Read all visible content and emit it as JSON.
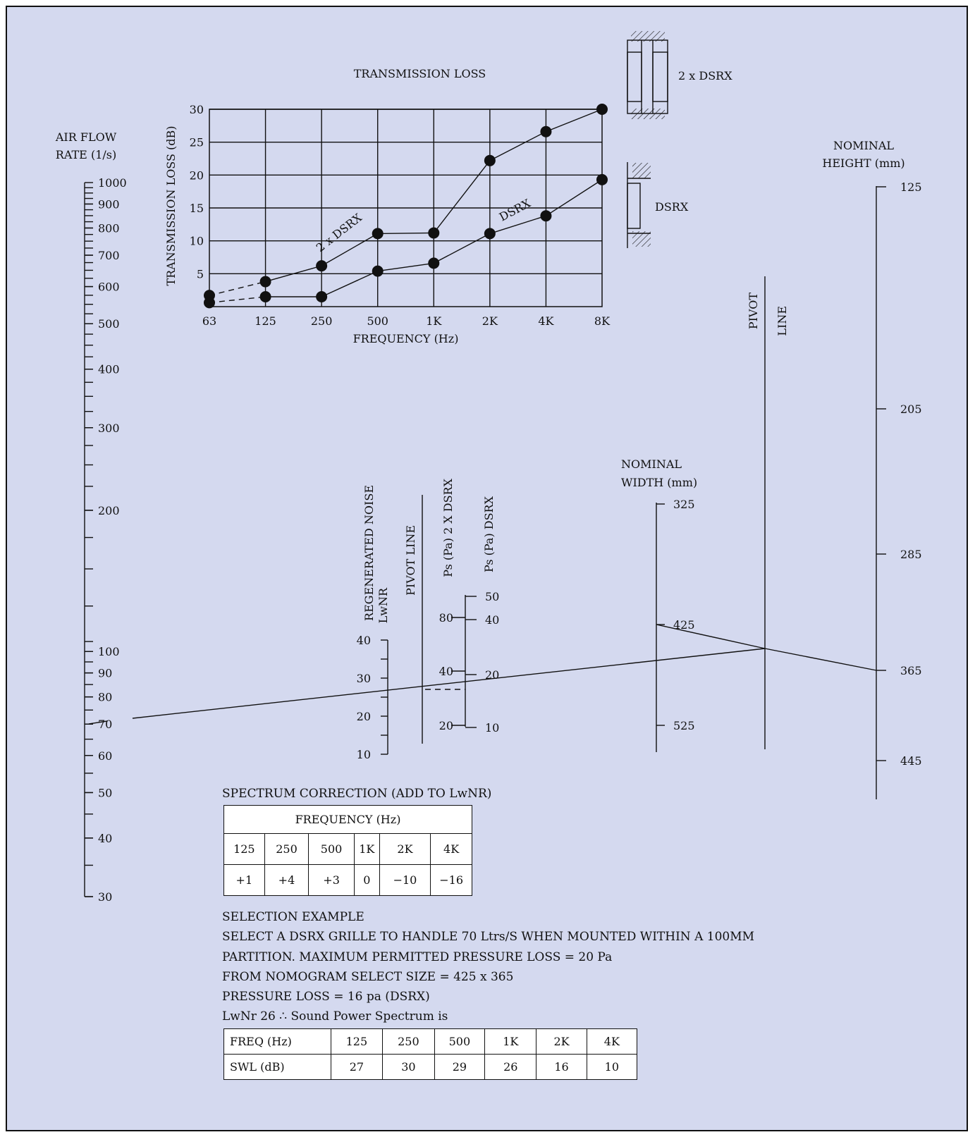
{
  "colors": {
    "background": "#d4d9ef",
    "ink": "#111111",
    "table_bg": "#ffffff"
  },
  "chart_data": [
    {
      "type": "line",
      "title": "TRANSMISSION LOSS",
      "xlabel": "FREQUENCY (Hz)",
      "ylabel": "TRANSMISSION LOSS (dB)",
      "categories": [
        "63",
        "125",
        "250",
        "500",
        "1K",
        "2K",
        "4K",
        "8K"
      ],
      "yticks": [
        "5",
        "10",
        "15",
        "20",
        "25",
        "30"
      ],
      "ylim": [
        0,
        30
      ],
      "grid": true,
      "series": [
        {
          "name": "2 x DSRX",
          "values": [
            1.7,
            3.8,
            6.2,
            11.1,
            11.2,
            22.2,
            26.6,
            30
          ]
        },
        {
          "name": "DSRX",
          "values": [
            0.6,
            1.5,
            1.5,
            5.4,
            6.6,
            11.1,
            13.8,
            19.3
          ]
        }
      ],
      "legend_icons": [
        {
          "label": "2 x DSRX",
          "icon": "double-grille-section-icon"
        },
        {
          "label": "DSRX",
          "icon": "single-grille-section-icon"
        }
      ]
    },
    {
      "type": "nomogram",
      "scales": {
        "airflow": {
          "label": [
            "AIR FLOW",
            "RATE (1/s)"
          ],
          "ticks": [
            "1000",
            "900",
            "800",
            "700",
            "600",
            "500",
            "400",
            "300",
            "200",
            "100",
            "90",
            "80",
            "70",
            "60",
            "50",
            "40",
            "30"
          ],
          "range": [
            30,
            1000
          ],
          "log": true
        },
        "lwnr": {
          "label": [
            "REGENERATED NOISE",
            "LwNR"
          ],
          "ticks": [
            "40",
            "30",
            "20",
            "10"
          ]
        },
        "pivot1": {
          "label": "PIVOT LINE"
        },
        "ps2x": {
          "label": "Ps (Pa) 2 X DSRX",
          "ticks": [
            "80",
            "40",
            "20"
          ]
        },
        "ps1": {
          "label": "Ps (Pa) DSRX",
          "ticks": [
            "50",
            "40",
            "20",
            "10"
          ]
        },
        "width": {
          "label": [
            "NOMINAL",
            "WIDTH (mm)"
          ],
          "ticks": [
            "325",
            "425",
            "525"
          ]
        },
        "pivot2": {
          "label": [
            "PIVOT",
            "LINE"
          ]
        },
        "height": {
          "label": [
            "NOMINAL",
            "HEIGHT (mm)"
          ],
          "ticks": [
            "125",
            "205",
            "285",
            "365",
            "445"
          ]
        }
      },
      "example": {
        "airflow": 70,
        "width": 425,
        "height": 365,
        "pressure_loss": 16,
        "lwnr": 26
      }
    }
  ],
  "spectrum": {
    "title": "SPECTRUM CORRECTION (ADD TO LwNR)",
    "header": "FREQUENCY (Hz)",
    "freqs": [
      "125",
      "250",
      "500",
      "1K",
      "2K",
      "4K"
    ],
    "corrections": [
      "+1",
      "+4",
      "+3",
      "0",
      "−10",
      "−16"
    ]
  },
  "example_text": {
    "heading": "SELECTION EXAMPLE",
    "line1": "SELECT A DSRX GRILLE TO HANDLE 70 Ltrs/S WHEN MOUNTED WITHIN A 100MM",
    "line2": "PARTITION. MAXIMUM PERMITTED PRESSURE LOSS = 20 Pa",
    "line3": "FROM NOMOGRAM SELECT SIZE = 425 x 365",
    "line4": "PRESSURE LOSS  = 16 pa (DSRX)",
    "line5": "LwNr 26 ∴ Sound Power Spectrum is"
  },
  "swl_table": {
    "row1_label": "FREQ (Hz)",
    "row2_label": "SWL (dB)",
    "freqs": [
      "125",
      "250",
      "500",
      "1K",
      "2K",
      "4K"
    ],
    "values": [
      "27",
      "30",
      "29",
      "26",
      "16",
      "10"
    ]
  }
}
